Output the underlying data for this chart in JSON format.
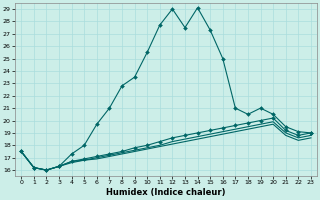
{
  "xlabel": "Humidex (Indice chaleur)",
  "bg_color": "#cceee8",
  "grid_color": "#aadddd",
  "line_color": "#006666",
  "xlim": [
    -0.5,
    23.5
  ],
  "ylim": [
    15.5,
    29.5
  ],
  "yticks": [
    16,
    17,
    18,
    19,
    20,
    21,
    22,
    23,
    24,
    25,
    26,
    27,
    28,
    29
  ],
  "xticks": [
    0,
    1,
    2,
    3,
    4,
    5,
    6,
    7,
    8,
    9,
    10,
    11,
    12,
    13,
    14,
    15,
    16,
    17,
    18,
    19,
    20,
    21,
    22,
    23
  ],
  "main_x": [
    0,
    1,
    2,
    3,
    4,
    5,
    6,
    7,
    8,
    9,
    10,
    11,
    12,
    13,
    14,
    15,
    16,
    17,
    18,
    19,
    20,
    21,
    22,
    23
  ],
  "main_y": [
    17.5,
    16.2,
    16.0,
    16.3,
    17.3,
    18.0,
    19.7,
    21.0,
    22.8,
    23.5,
    25.5,
    27.7,
    29.0,
    27.5,
    29.1,
    27.3,
    25.0,
    21.0,
    20.5,
    21.0,
    20.5,
    19.5,
    19.1,
    19.0
  ],
  "flat1_x": [
    0,
    1,
    2,
    3,
    4,
    5,
    6,
    7,
    8,
    9,
    10,
    11,
    12,
    13,
    14,
    15,
    16,
    17,
    18,
    19,
    20,
    21,
    22,
    23
  ],
  "flat1_y": [
    17.5,
    16.2,
    16.0,
    16.3,
    16.7,
    16.9,
    17.1,
    17.3,
    17.5,
    17.8,
    18.0,
    18.3,
    18.6,
    18.8,
    19.0,
    19.2,
    19.4,
    19.6,
    19.8,
    20.0,
    20.2,
    19.2,
    18.8,
    19.0
  ],
  "flat2_x": [
    0,
    1,
    2,
    3,
    4,
    5,
    6,
    7,
    8,
    9,
    10,
    11,
    12,
    13,
    14,
    15,
    16,
    17,
    18,
    19,
    20,
    21,
    22,
    23
  ],
  "flat2_y": [
    17.5,
    16.2,
    16.0,
    16.3,
    16.7,
    16.8,
    17.0,
    17.2,
    17.4,
    17.6,
    17.8,
    18.0,
    18.3,
    18.5,
    18.7,
    18.9,
    19.1,
    19.3,
    19.5,
    19.7,
    19.9,
    19.0,
    18.6,
    18.8
  ],
  "flat3_x": [
    0,
    1,
    2,
    3,
    4,
    5,
    6,
    7,
    8,
    9,
    10,
    11,
    12,
    13,
    14,
    15,
    16,
    17,
    18,
    19,
    20,
    21,
    22,
    23
  ],
  "flat3_y": [
    17.5,
    16.2,
    16.0,
    16.3,
    16.6,
    16.8,
    16.9,
    17.1,
    17.3,
    17.5,
    17.7,
    17.9,
    18.1,
    18.3,
    18.5,
    18.7,
    18.9,
    19.1,
    19.3,
    19.5,
    19.7,
    18.8,
    18.4,
    18.6
  ]
}
